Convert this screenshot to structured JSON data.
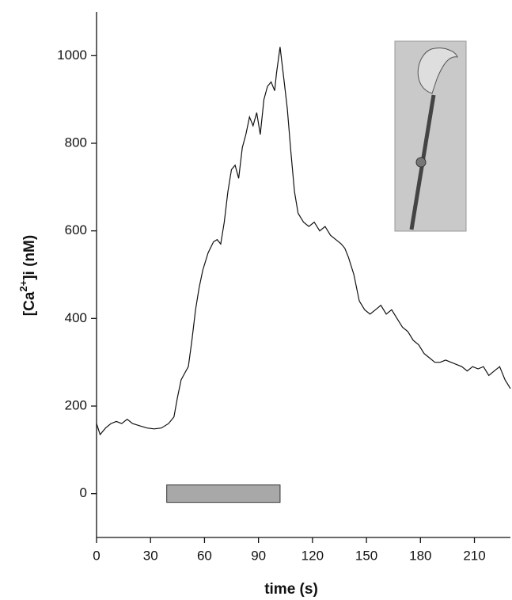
{
  "chart_data": {
    "type": "line",
    "xlabel": "time (s)",
    "ylabel": {
      "prefix": "[Ca",
      "superscript": "2+",
      "suffix": "]i (nM)"
    },
    "xlim": [
      0,
      230
    ],
    "ylim": [
      -100,
      1100
    ],
    "xticks": [
      0,
      30,
      60,
      90,
      120,
      150,
      180,
      210
    ],
    "yticks": [
      0,
      200,
      400,
      600,
      800,
      1000
    ],
    "stimulus_bar": {
      "start": 39,
      "end": 102,
      "color": "#a8a8a8"
    },
    "series": [
      {
        "color": "#111111",
        "x": [
          0,
          2,
          5,
          8,
          11,
          14,
          17,
          20,
          24,
          28,
          32,
          36,
          40,
          43,
          45,
          47,
          49,
          51,
          53,
          55,
          57,
          59,
          62,
          65,
          67,
          69,
          71,
          73,
          75,
          77,
          79,
          81,
          83,
          85,
          87,
          89,
          91,
          93,
          95,
          97,
          99,
          100,
          102,
          104,
          106,
          108,
          110,
          112,
          115,
          118,
          121,
          124,
          127,
          130,
          133,
          136,
          138,
          140,
          143,
          146,
          149,
          152,
          155,
          158,
          161,
          164,
          167,
          170,
          173,
          176,
          179,
          182,
          185,
          188,
          191,
          194,
          197,
          200,
          203,
          206,
          209,
          212,
          215,
          218,
          221,
          224,
          227,
          230
        ],
        "values": [
          160,
          135,
          150,
          160,
          165,
          160,
          170,
          160,
          155,
          150,
          148,
          150,
          160,
          175,
          220,
          260,
          275,
          290,
          350,
          420,
          470,
          510,
          550,
          575,
          580,
          570,
          620,
          690,
          740,
          750,
          720,
          790,
          820,
          860,
          840,
          870,
          820,
          900,
          930,
          940,
          920,
          960,
          1020,
          950,
          880,
          780,
          690,
          640,
          620,
          610,
          620,
          600,
          610,
          590,
          580,
          570,
          560,
          540,
          500,
          440,
          420,
          410,
          420,
          430,
          410,
          420,
          400,
          380,
          370,
          350,
          340,
          320,
          310,
          300,
          300,
          305,
          300,
          295,
          290,
          280,
          290,
          285,
          290,
          270,
          280,
          290,
          260,
          240
        ]
      }
    ]
  }
}
